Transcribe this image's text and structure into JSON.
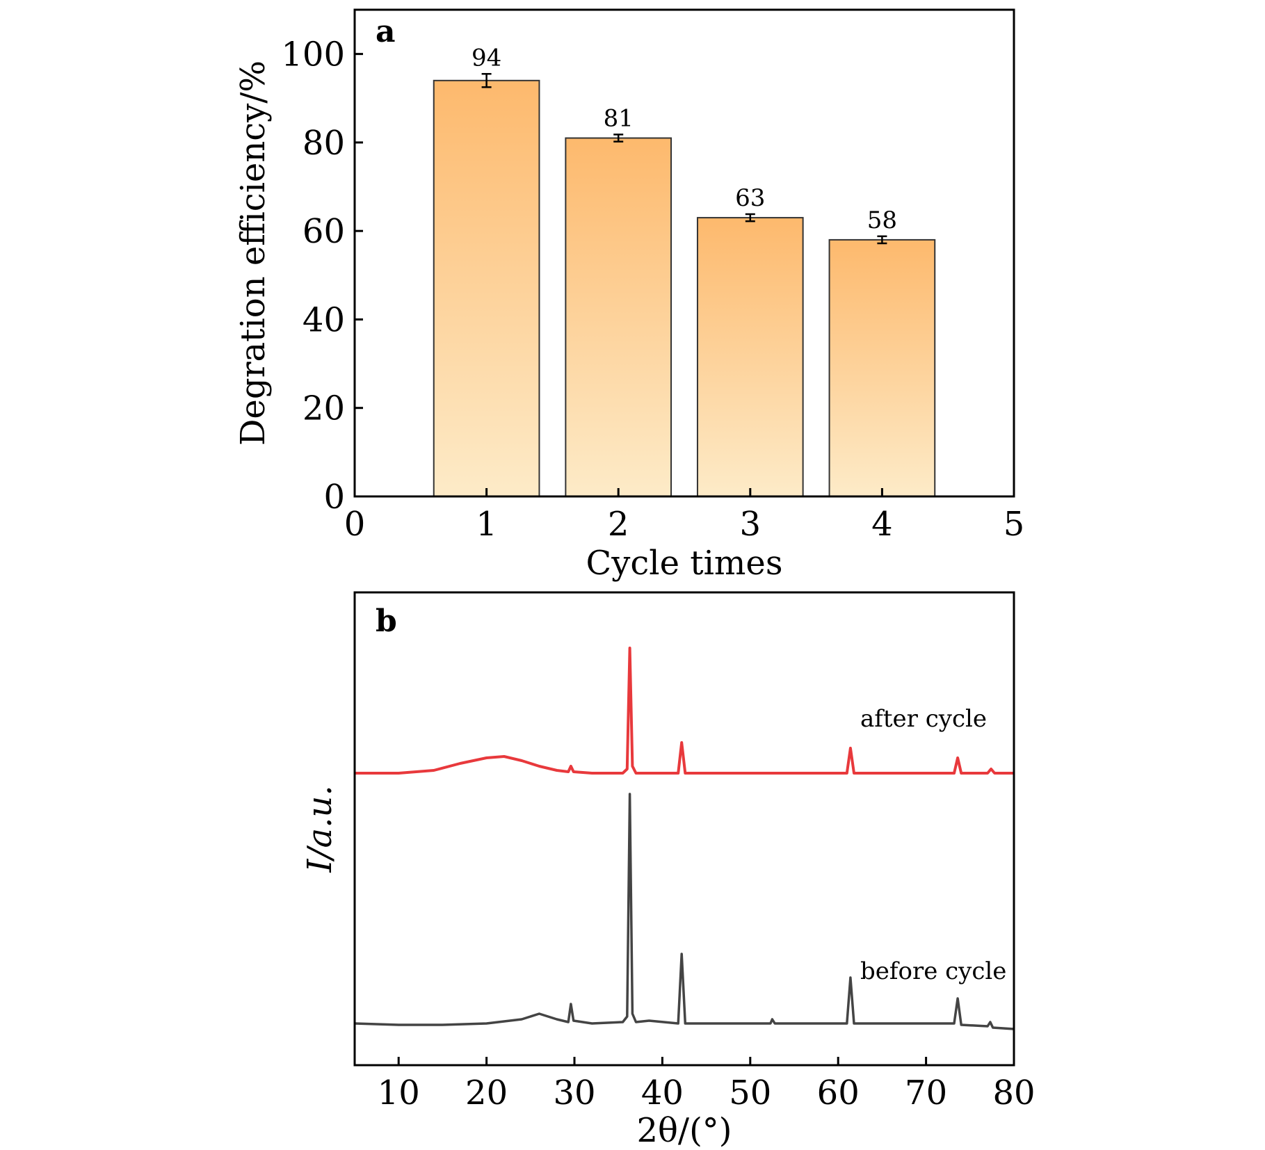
{
  "chart_data": [
    {
      "panel": "a",
      "type": "bar",
      "x": [
        1,
        2,
        3,
        4
      ],
      "values": [
        94,
        81,
        63,
        58
      ],
      "errors": [
        1.5,
        0.8,
        0.8,
        0.8
      ],
      "data_labels": [
        "94",
        "81",
        "63",
        "58"
      ],
      "xlabel": "Cycle times",
      "ylabel": "Degration efficiency/%",
      "xlim": [
        0,
        5
      ],
      "ylim": [
        0,
        110
      ],
      "xticks": [
        0,
        1,
        2,
        3,
        4,
        5
      ],
      "yticks": [
        0,
        20,
        40,
        60,
        80,
        100
      ],
      "grid": false,
      "bar_fill_top": "#FDB96D",
      "bar_fill_bottom": "#FDEBC8"
    },
    {
      "panel": "b",
      "type": "line",
      "xlabel": "2θ/(°)",
      "ylabel": "I/a.u.",
      "xlim": [
        5,
        80
      ],
      "xticks": [
        10,
        20,
        30,
        40,
        50,
        60,
        70,
        80
      ],
      "grid": false,
      "series": [
        {
          "name": "after cycle",
          "color": "#E8393C",
          "baseline": 0.0,
          "points": [
            [
              5,
              0.0
            ],
            [
              10,
              0.0
            ],
            [
              14,
              0.02
            ],
            [
              17,
              0.07
            ],
            [
              20,
              0.11
            ],
            [
              22,
              0.12
            ],
            [
              24,
              0.09
            ],
            [
              26,
              0.05
            ],
            [
              28,
              0.02
            ],
            [
              29.3,
              0.01
            ],
            [
              29.6,
              0.05
            ],
            [
              29.9,
              0.01
            ],
            [
              32,
              0.0
            ],
            [
              35.5,
              0.0
            ],
            [
              36.0,
              0.03
            ],
            [
              36.3,
              0.9
            ],
            [
              36.6,
              0.05
            ],
            [
              37.0,
              0.0
            ],
            [
              41.8,
              0.0
            ],
            [
              42.2,
              0.22
            ],
            [
              42.6,
              0.0
            ],
            [
              55,
              0.0
            ],
            [
              61.0,
              0.0
            ],
            [
              61.4,
              0.18
            ],
            [
              61.8,
              0.0
            ],
            [
              73.2,
              0.0
            ],
            [
              73.6,
              0.11
            ],
            [
              74.0,
              0.0
            ],
            [
              77,
              0.0
            ],
            [
              77.4,
              0.03
            ],
            [
              77.8,
              0.0
            ],
            [
              80,
              0.0
            ]
          ]
        },
        {
          "name": "before cycle",
          "color": "#444444",
          "baseline": -1.8,
          "points": [
            [
              5,
              0.0
            ],
            [
              10,
              -0.01
            ],
            [
              15,
              -0.01
            ],
            [
              20,
              0.0
            ],
            [
              24,
              0.03
            ],
            [
              26,
              0.07
            ],
            [
              28,
              0.03
            ],
            [
              29.3,
              0.01
            ],
            [
              29.6,
              0.14
            ],
            [
              29.9,
              0.02
            ],
            [
              32,
              0.0
            ],
            [
              35.5,
              0.01
            ],
            [
              36.0,
              0.05
            ],
            [
              36.3,
              1.65
            ],
            [
              36.6,
              0.07
            ],
            [
              37.0,
              0.01
            ],
            [
              38.5,
              0.02
            ],
            [
              41.8,
              0.0
            ],
            [
              42.2,
              0.5
            ],
            [
              42.6,
              0.0
            ],
            [
              52.3,
              0.0
            ],
            [
              52.5,
              0.03
            ],
            [
              52.8,
              0.0
            ],
            [
              61.0,
              0.0
            ],
            [
              61.4,
              0.33
            ],
            [
              61.8,
              0.0
            ],
            [
              73.2,
              0.0
            ],
            [
              73.6,
              0.18
            ],
            [
              74.0,
              -0.01
            ],
            [
              77,
              -0.02
            ],
            [
              77.3,
              0.01
            ],
            [
              77.6,
              -0.03
            ],
            [
              80,
              -0.04
            ]
          ]
        }
      ],
      "y_range": [
        -2.1,
        1.3
      ]
    }
  ]
}
